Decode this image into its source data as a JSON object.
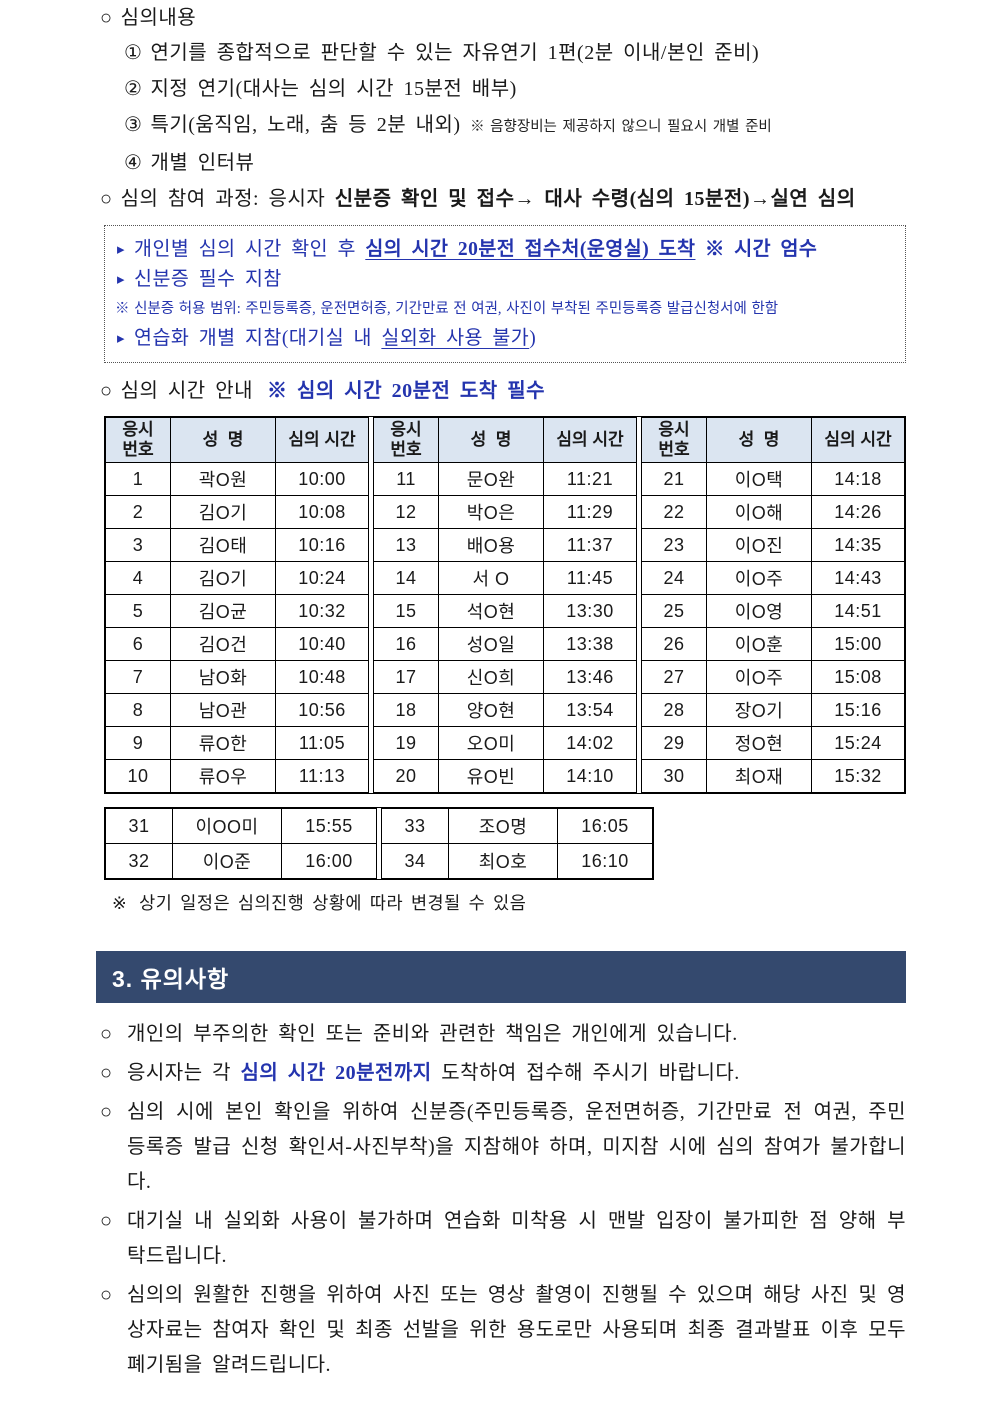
{
  "glyphs": {
    "circle": "○",
    "ref": "※",
    "tri": "▸"
  },
  "colors": {
    "accent_blue": "#2434ae",
    "table_header_bg": "#dbe5f1",
    "section_band_bg": "#34496e",
    "section_band_text": "#ffffff"
  },
  "review_content": {
    "title": "심의내용",
    "items": [
      {
        "num": "①",
        "text": "연기를 종합적으로 판단할 수 있는 자유연기 1편(2분 이내/본인 준비)",
        "note": ""
      },
      {
        "num": "②",
        "text": "지정 연기(대사는 심의 시간 15분전 배부)",
        "note": ""
      },
      {
        "num": "③",
        "text": "특기(움직임, 노래, 춤 등 2분 내외)",
        "note": "※ 음향장비는 제공하지 않으니 필요시 개별 준비"
      },
      {
        "num": "④",
        "text": "개별 인터뷰",
        "note": ""
      }
    ]
  },
  "process": {
    "label": "심의 참여 과정: 응시자 ",
    "bold1": "신분증 확인 및 접수",
    "arrow": "→ ",
    "bold2": "대사 수령(심의 15분전)→실연 심의"
  },
  "notice_box": {
    "line1_pre": "개인별 심의 시간 확인 후 ",
    "line1_underline": "심의 시간 20분전 접수처(운영실) 도착",
    "line1_post": " ※ 시간 엄수",
    "line2": "신분증 필수 지참",
    "line3": "※ 신분증 허용 범위: 주민등록증, 운전면허증, 기간만료 전 여권, 사진이 부착된 주민등록증 발급신청서에 한함",
    "line4_pre": "연습화 개별 지참(대기실 내 ",
    "line4_underline": "실외화 사용 불가",
    "line4_post": ")"
  },
  "schedule": {
    "heading": "심의 시간 안내",
    "heading_note": "※ 심의 시간 20분전 도착 필수",
    "headers": [
      "응시\n번호",
      "성  명",
      "심의 시간"
    ],
    "groups": [
      {
        "rows": [
          [
            "1",
            "곽O원",
            "10:00"
          ],
          [
            "2",
            "김O기",
            "10:08"
          ],
          [
            "3",
            "김O태",
            "10:16"
          ],
          [
            "4",
            "김O기",
            "10:24"
          ],
          [
            "5",
            "김O균",
            "10:32"
          ],
          [
            "6",
            "김O건",
            "10:40"
          ],
          [
            "7",
            "남O화",
            "10:48"
          ],
          [
            "8",
            "남O관",
            "10:56"
          ],
          [
            "9",
            "류O한",
            "11:05"
          ],
          [
            "10",
            "류O우",
            "11:13"
          ]
        ]
      },
      {
        "rows": [
          [
            "11",
            "문O완",
            "11:21"
          ],
          [
            "12",
            "박O은",
            "11:29"
          ],
          [
            "13",
            "배O용",
            "11:37"
          ],
          [
            "14",
            "서 O",
            "11:45"
          ],
          [
            "15",
            "석O현",
            "13:30"
          ],
          [
            "16",
            "성O일",
            "13:38"
          ],
          [
            "17",
            "신O희",
            "13:46"
          ],
          [
            "18",
            "양O현",
            "13:54"
          ],
          [
            "19",
            "오O미",
            "14:02"
          ],
          [
            "20",
            "유O빈",
            "14:10"
          ]
        ]
      },
      {
        "rows": [
          [
            "21",
            "이O택",
            "14:18"
          ],
          [
            "22",
            "이O해",
            "14:26"
          ],
          [
            "23",
            "이O진",
            "14:35"
          ],
          [
            "24",
            "이O주",
            "14:43"
          ],
          [
            "25",
            "이O영",
            "14:51"
          ],
          [
            "26",
            "이O훈",
            "15:00"
          ],
          [
            "27",
            "이O주",
            "15:08"
          ],
          [
            "28",
            "장O기",
            "15:16"
          ],
          [
            "29",
            "정O현",
            "15:24"
          ],
          [
            "30",
            "최O재",
            "15:32"
          ]
        ]
      }
    ],
    "extra_groups": [
      {
        "rows": [
          [
            "31",
            "이OO미",
            "15:55"
          ],
          [
            "32",
            "이O준",
            "16:00"
          ]
        ]
      },
      {
        "rows": [
          [
            "33",
            "조O명",
            "16:05"
          ],
          [
            "34",
            "최O호",
            "16:10"
          ]
        ]
      }
    ],
    "footnote": "상기 일정은 심의진행 상황에 따라 변경될 수 있음"
  },
  "section3": {
    "title": "3. 유의사항",
    "bullet1": "개인의 부주의한 확인 또는 준비와 관련한 책임은 개인에게 있습니다.",
    "bullet2_pre": "응시자는 각 ",
    "bullet2_bold": "심의 시간 20분전까지",
    "bullet2_post": " 도착하여 접수해 주시기 바랍니다.",
    "bullet3": "심의 시에 본인 확인을 위하여 신분증(주민등록증, 운전면허증, 기간만료 전 여권, 주민등록증 발급 신청 확인서-사진부착)을 지참해야 하며, 미지참 시에 심의 참여가 불가합니다.",
    "bullet4": "대기실 내 실외화 사용이 불가하며 연습화 미착용 시 맨발 입장이 불가피한 점 양해 부탁드립니다.",
    "bullet5": "심의의 원활한 진행을 위하여 사진 또는 영상 촬영이 진행될 수 있으며 해당 사진 및 영상자료는 참여자 확인 및 최종 선발을 위한 용도로만 사용되며 최종 결과발표 이후 모두 폐기됨을 알려드립니다."
  }
}
